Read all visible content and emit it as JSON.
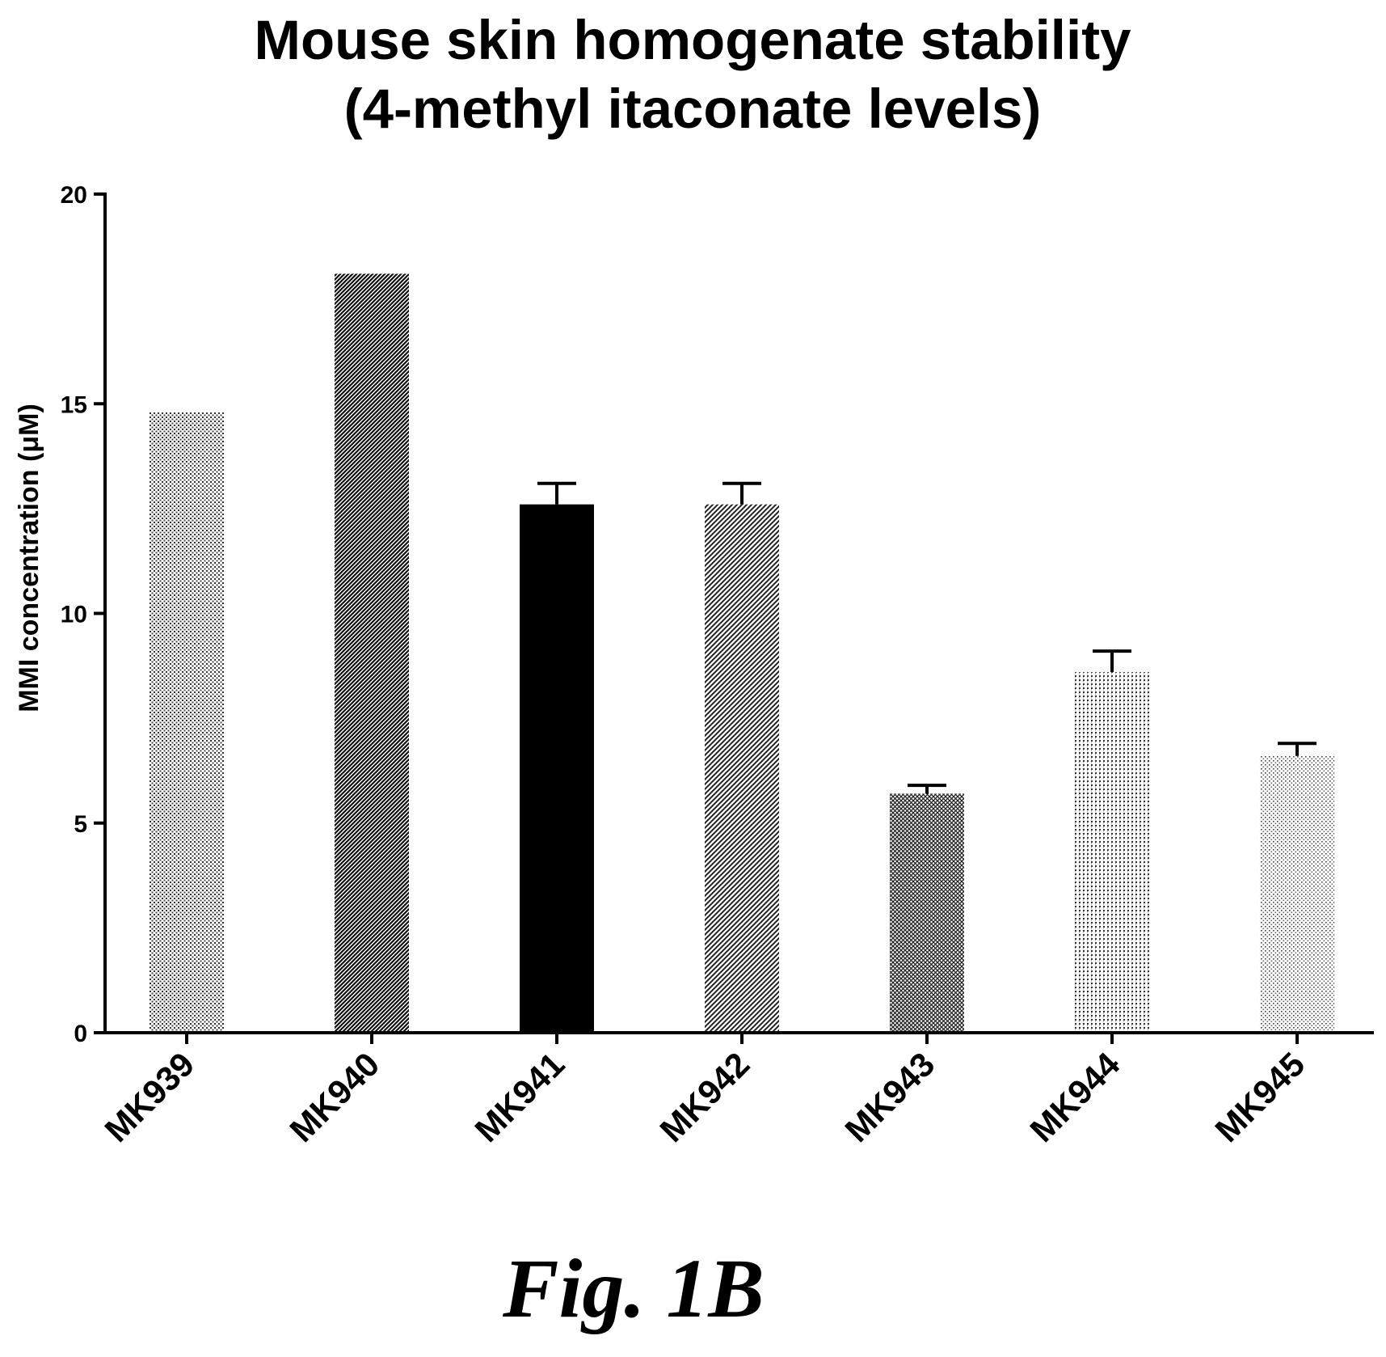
{
  "chart_data": {
    "type": "bar",
    "title": [
      "Mouse skin homogenate stability",
      "(4-methyl itaconate levels)"
    ],
    "xlabel": "",
    "ylabel": "MMI concentration (μM)",
    "ylim": [
      0,
      20
    ],
    "yticks": [
      "0",
      "5",
      "10",
      "15",
      "20"
    ],
    "categories": [
      "MK939",
      "MK940",
      "MK941",
      "MK942",
      "MK943",
      "MK944",
      "MK945"
    ],
    "values": [
      14.8,
      18.1,
      12.6,
      12.6,
      5.7,
      8.6,
      6.6
    ],
    "error_upper": [
      0,
      0,
      0.5,
      0.5,
      0.2,
      0.5,
      0.3
    ],
    "fills": [
      "dots-light",
      "diagonal-dense",
      "solid-black",
      "diagonal-medium",
      "crosshatch",
      "dots-grid",
      "dots-fine"
    ],
    "grid": false,
    "legend": "none"
  },
  "figure_label": "Fig. 1B",
  "colors": {
    "axis": "#000000",
    "background": "#ffffff"
  }
}
